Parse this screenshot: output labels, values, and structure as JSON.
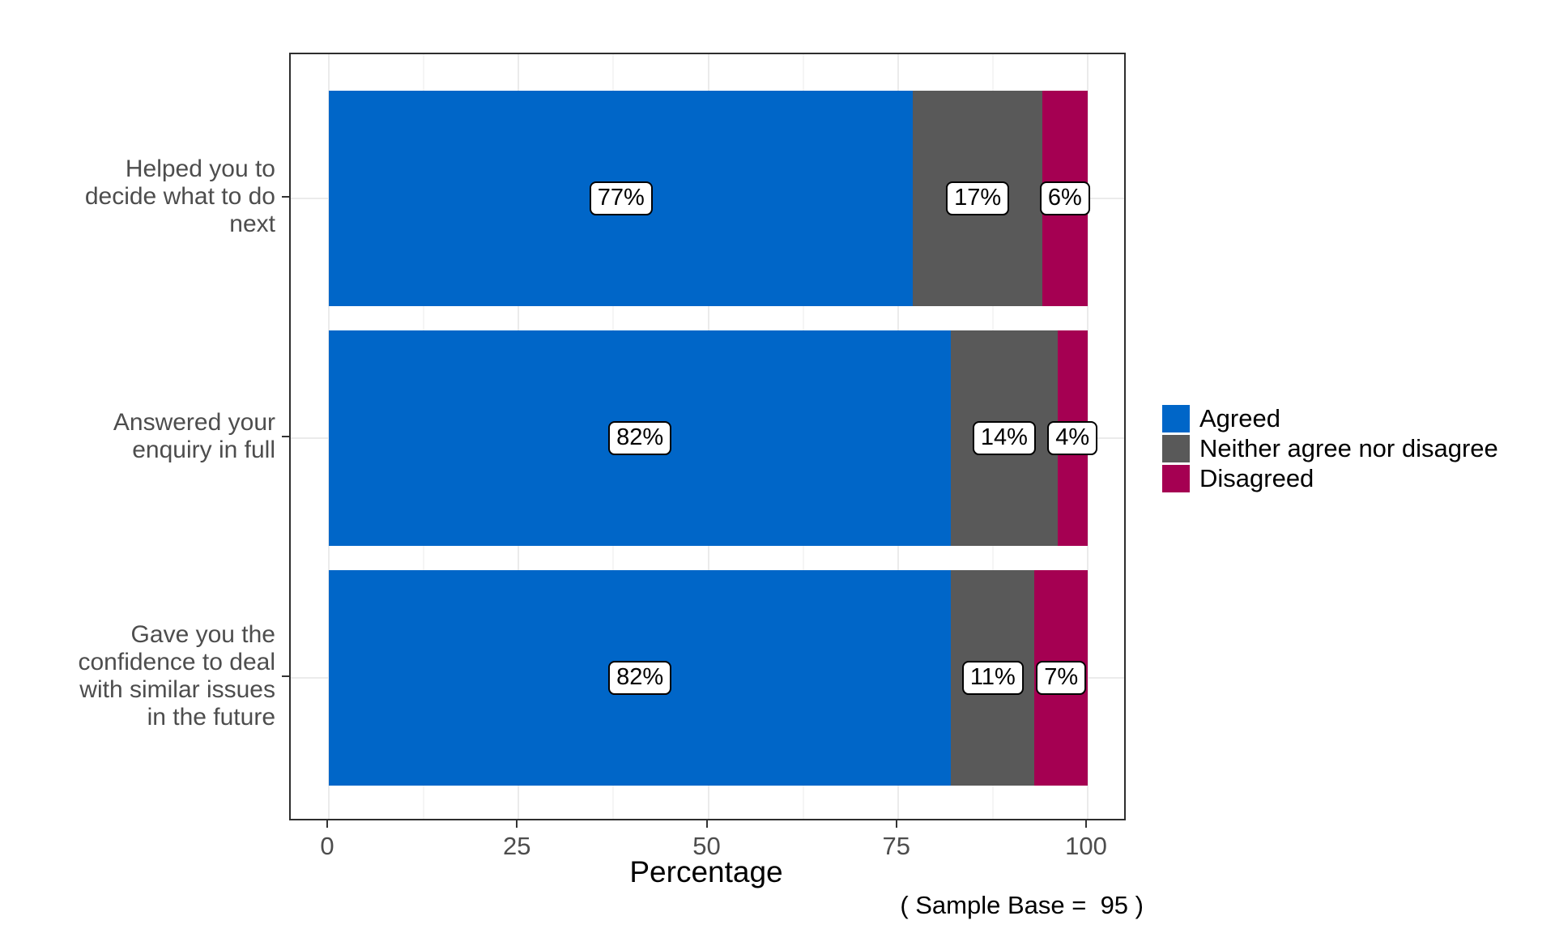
{
  "figure": {
    "background": "#ffffff"
  },
  "chart_data": {
    "type": "bar",
    "orientation": "horizontal",
    "stacked": true,
    "title": "",
    "xlabel": "Percentage",
    "ylabel": "",
    "caption": "( Sample Base =  95 )",
    "xlim": [
      0,
      100
    ],
    "x_major_ticks": [
      0,
      25,
      50,
      75,
      100
    ],
    "x_minor_ticks": [
      12.5,
      37.5,
      62.5,
      87.5
    ],
    "grid": true,
    "legend_position": "right",
    "panel_border_color": "#2e2e2e",
    "grid_major_color": "#ebebeb",
    "grid_minor_color": "#f5f5f5",
    "tick_label_color": "#4d4d4d",
    "categories": [
      {
        "label": "Helped you to decide what to do next",
        "lines": [
          "Helped you to",
          "decide what to do",
          "next"
        ]
      },
      {
        "label": "Answered your enquiry in full",
        "lines": [
          "Answered your",
          "enquiry in full"
        ]
      },
      {
        "label": "Gave you the confidence to deal with similar issues in the future",
        "lines": [
          "Gave you the",
          "confidence to deal",
          "with similar issues",
          "in the future"
        ]
      }
    ],
    "series": [
      {
        "name": "Agreed",
        "color": "#0066C8",
        "values": [
          77,
          82,
          82
        ]
      },
      {
        "name": "Neither agree nor disagree",
        "color": "#595959",
        "values": [
          17,
          14,
          11
        ]
      },
      {
        "name": "Disagreed",
        "color": "#A50052",
        "values": [
          6,
          4,
          7
        ]
      }
    ],
    "bar_labels": [
      [
        "77%",
        "17%",
        "6%"
      ],
      [
        "82%",
        "14%",
        "4%"
      ],
      [
        "82%",
        "11%",
        "7%"
      ]
    ]
  }
}
